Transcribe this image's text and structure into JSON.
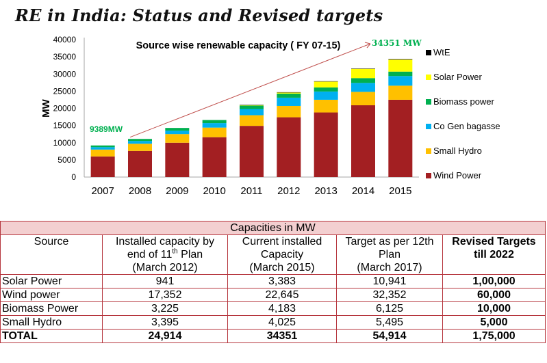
{
  "page_title": "RE in India: Status and Revised targets",
  "chart_data": {
    "type": "bar",
    "stacked": true,
    "title": "Source wise renewable capacity ( FY 07-15)",
    "xlabel": "",
    "ylabel": "MW",
    "ylim": [
      0,
      40000
    ],
    "yticks": [
      0,
      5000,
      10000,
      15000,
      20000,
      25000,
      30000,
      35000,
      40000
    ],
    "categories": [
      "2007",
      "2008",
      "2009",
      "2010",
      "2011",
      "2012",
      "2013",
      "2014",
      "2015"
    ],
    "series": [
      {
        "name": "Wind Power",
        "color": "#a31f22",
        "values": [
          6000,
          7600,
          10000,
          11600,
          14900,
          17400,
          18800,
          20900,
          22500
        ]
      },
      {
        "name": "Small Hydro",
        "color": "#ffc000",
        "values": [
          2000,
          2100,
          2500,
          2800,
          3100,
          3300,
          3700,
          3900,
          4100
        ]
      },
      {
        "name": "Co Gen bagasse",
        "color": "#00b0f0",
        "values": [
          700,
          800,
          1000,
          1300,
          1800,
          2400,
          2400,
          2600,
          2800
        ]
      },
      {
        "name": "Biomass power",
        "color": "#00b050",
        "values": [
          500,
          600,
          800,
          900,
          1000,
          1200,
          1200,
          1400,
          1300
        ]
      },
      {
        "name": "Solar Power",
        "color": "#ffff00",
        "values": [
          0,
          0,
          0,
          0,
          100,
          300,
          1700,
          2700,
          3500
        ]
      },
      {
        "name": "WtE",
        "color": "#000000",
        "values": [
          0,
          0,
          0,
          0,
          100,
          100,
          100,
          100,
          150
        ]
      }
    ],
    "legend": {
      "placement": "right",
      "order": [
        "WtE",
        "Solar Power",
        "Biomass power",
        "Co Gen bagasse",
        "Small Hydro",
        "Wind Power"
      ]
    },
    "annotations": [
      {
        "text": "9389MW",
        "color": "#00b050",
        "anchor_category": "2007"
      },
      {
        "text": "34351 MW",
        "color": "#00b050",
        "anchor_category": "2015"
      }
    ],
    "arrow": {
      "from": "2007",
      "to": "2015",
      "color": "#c0504d"
    },
    "grid": false
  },
  "table": {
    "caption": "Capacities  in MW",
    "headers": [
      {
        "lines": [
          "Source"
        ]
      },
      {
        "lines": [
          "Installed capacity by",
          "end of 11",
          "th",
          " Plan",
          "(March 2012)"
        ]
      },
      {
        "lines": [
          "Current installed",
          "Capacity",
          "(March 2015)"
        ]
      },
      {
        "lines": [
          "Target as per 12th",
          "Plan",
          "(March 2017)"
        ]
      },
      {
        "lines": [
          "Revised Targets",
          "till 2022"
        ]
      }
    ],
    "rows": [
      {
        "source": "Solar  Power",
        "plan11": "941",
        "current": "3,383",
        "plan12": "10,941",
        "revised": "1,00,000"
      },
      {
        "source": "Wind power",
        "plan11": "17,352",
        "current": "22,645",
        "plan12": "32,352",
        "revised": "60,000"
      },
      {
        "source": "Biomass Power",
        "plan11": "3,225",
        "current": "4,183",
        "plan12": "6,125",
        "revised": "10,000"
      },
      {
        "source": "Small Hydro",
        "plan11": "3,395",
        "current": "4,025",
        "plan12": "5,495",
        "revised": "5,000"
      }
    ],
    "total": {
      "source": "TOTAL",
      "plan11": "24,914",
      "current": "34351",
      "plan12": "54,914",
      "revised": "1,75,000"
    }
  }
}
